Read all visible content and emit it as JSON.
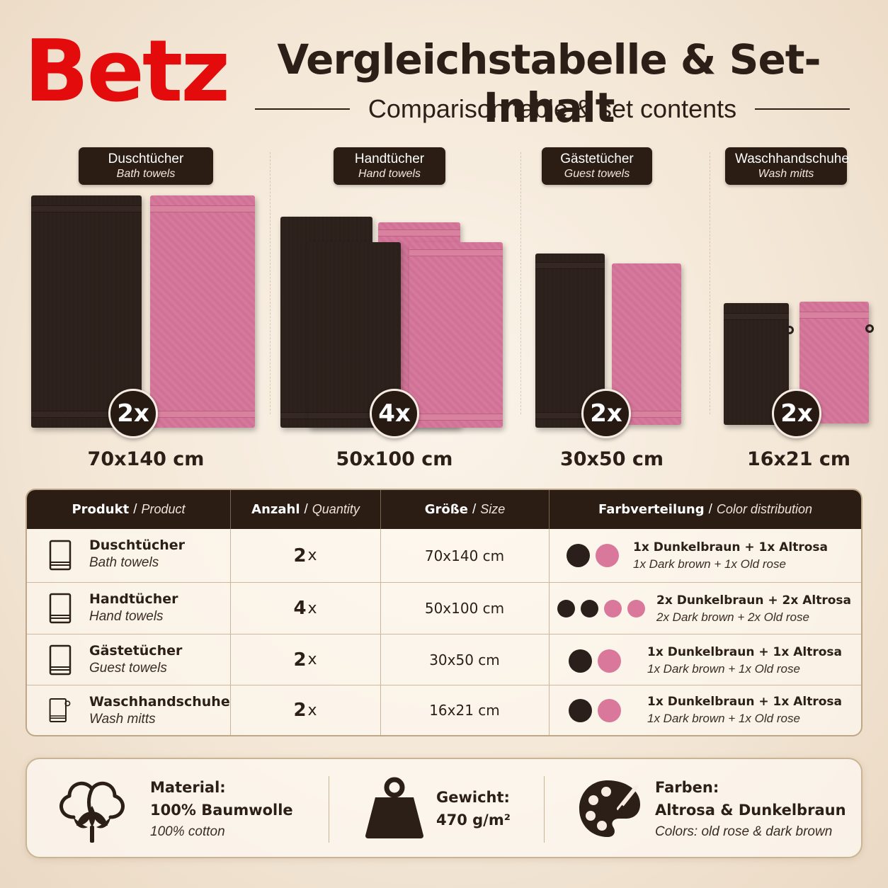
{
  "brand": {
    "logo": "Betz"
  },
  "header": {
    "title": "Vergleichstabelle & Set-Inhalt",
    "subtitle": "Comparison table & set contents"
  },
  "colors": {
    "dark_brown": "#2a1f1a",
    "old_rose": "#d9789a",
    "logo_red": "#e30b0b",
    "badge_bg": "#2b1c14"
  },
  "products": [
    {
      "de": "Duschtücher",
      "en": "Bath towels",
      "count": "2x",
      "size": "70x140 cm"
    },
    {
      "de": "Handtücher",
      "en": "Hand towels",
      "count": "4x",
      "size": "50x100 cm"
    },
    {
      "de": "Gästetücher",
      "en": "Guest towels",
      "count": "2x",
      "size": "30x50 cm"
    },
    {
      "de": "Waschhandschuhe",
      "en": "Wash mitts",
      "count": "2x",
      "size": "16x21 cm"
    }
  ],
  "table": {
    "headers": [
      {
        "de": "Produkt",
        "en": "Product"
      },
      {
        "de": "Anzahl",
        "en": "Quantity"
      },
      {
        "de": "Größe",
        "en": "Size"
      },
      {
        "de": "Farbverteilung",
        "en": "Color distribution"
      }
    ],
    "separator": "/",
    "rows": [
      {
        "icon": "towel-icon",
        "de": "Duschtücher",
        "en": "Bath towels",
        "qty": "2",
        "qty_unit": "x",
        "size": "70x140 cm",
        "dots": [
          "brown",
          "rose"
        ],
        "dist_de": "1x Dunkelbraun + 1x Altrosa",
        "dist_en": "1x Dark brown + 1x Old rose"
      },
      {
        "icon": "towel-icon",
        "de": "Handtücher",
        "en": "Hand towels",
        "qty": "4",
        "qty_unit": "x",
        "size": "50x100 cm",
        "dots": [
          "brown",
          "brown",
          "rose",
          "rose"
        ],
        "dist_de": "2x Dunkelbraun + 2x Altrosa",
        "dist_en": "2x Dark brown + 2x Old rose"
      },
      {
        "icon": "towel-icon",
        "de": "Gästetücher",
        "en": "Guest towels",
        "qty": "2",
        "qty_unit": "x",
        "size": "30x50 cm",
        "dots": [
          "brown",
          "rose"
        ],
        "dist_de": "1x Dunkelbraun + 1x Altrosa",
        "dist_en": "1x Dark brown + 1x Old rose"
      },
      {
        "icon": "mitt-icon",
        "de": "Waschhandschuhe",
        "en": "Wash mitts",
        "qty": "2",
        "qty_unit": "x",
        "size": "16x21 cm",
        "dots": [
          "brown",
          "rose"
        ],
        "dist_de": "1x Dunkelbraun + 1x Altrosa",
        "dist_en": "1x Dark brown + 1x Old rose"
      }
    ]
  },
  "info": [
    {
      "icon": "cotton-icon",
      "label": "Material:",
      "value": "100% Baumwolle",
      "en": "100% cotton"
    },
    {
      "icon": "weight-icon",
      "label": "Gewicht:",
      "value": "470 g/m²"
    },
    {
      "icon": "palette-icon",
      "label": "Farben:",
      "value": "Altrosa & Dunkelbraun",
      "en": "Colors: old rose & dark brown"
    }
  ]
}
